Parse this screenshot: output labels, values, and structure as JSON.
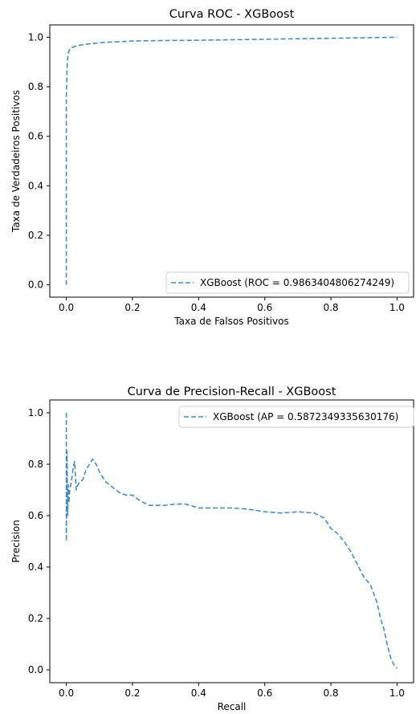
{
  "chart_data": [
    {
      "type": "line",
      "title": "Curva ROC  - XGBoost",
      "xlabel": "Taxa de Falsos Positivos",
      "ylabel": "Taxa de Verdadeiros Positivos",
      "xlim": [
        -0.05,
        1.05
      ],
      "ylim": [
        -0.05,
        1.05
      ],
      "xticks": [
        0.0,
        0.2,
        0.4,
        0.6,
        0.8,
        1.0
      ],
      "xtick_labels": [
        "0.0",
        "0.2",
        "0.4",
        "0.6",
        "0.8",
        "1.0"
      ],
      "yticks": [
        0.0,
        0.2,
        0.4,
        0.6,
        0.8,
        1.0
      ],
      "ytick_labels": [
        "0.0",
        "0.2",
        "0.4",
        "0.6",
        "0.8",
        "1.0"
      ],
      "legend_position": "lower-right",
      "grid": false,
      "color": "#4a8bbd",
      "series": [
        {
          "name": "XGBoost (ROC = 0.9863404806274249)",
          "x": [
            0.0,
            0.0,
            0.002,
            0.003,
            0.005,
            0.008,
            0.012,
            0.02,
            0.03,
            0.05,
            0.08,
            0.12,
            0.16,
            0.2,
            0.3,
            0.4,
            0.5,
            0.6,
            0.7,
            0.8,
            0.9,
            1.0
          ],
          "y": [
            0.0,
            0.75,
            0.86,
            0.9,
            0.93,
            0.945,
            0.955,
            0.96,
            0.965,
            0.97,
            0.975,
            0.98,
            0.982,
            0.985,
            0.987,
            0.988,
            0.99,
            0.992,
            0.994,
            0.996,
            0.998,
            1.0
          ]
        }
      ]
    },
    {
      "type": "line",
      "title": "Curva de Precision-Recall - XGBoost",
      "xlabel": "Recall",
      "ylabel": "Precision",
      "xlim": [
        -0.05,
        1.05
      ],
      "ylim": [
        -0.05,
        1.05
      ],
      "xticks": [
        0.0,
        0.2,
        0.4,
        0.6,
        0.8,
        1.0
      ],
      "xtick_labels": [
        "0.0",
        "0.2",
        "0.4",
        "0.6",
        "0.8",
        "1.0"
      ],
      "yticks": [
        0.0,
        0.2,
        0.4,
        0.6,
        0.8,
        1.0
      ],
      "ytick_labels": [
        "0.0",
        "0.2",
        "0.4",
        "0.6",
        "0.8",
        "1.0"
      ],
      "legend_position": "upper-right",
      "grid": false,
      "color": "#4a8bbd",
      "series": [
        {
          "name": "XGBoost (AP = 0.5872349335630176)",
          "x": [
            0.0,
            0.0,
            0.002,
            0.004,
            0.006,
            0.008,
            0.01,
            0.015,
            0.02,
            0.025,
            0.03,
            0.035,
            0.04,
            0.05,
            0.06,
            0.07,
            0.08,
            0.09,
            0.1,
            0.12,
            0.14,
            0.16,
            0.18,
            0.2,
            0.22,
            0.25,
            0.28,
            0.3,
            0.33,
            0.36,
            0.4,
            0.45,
            0.5,
            0.55,
            0.6,
            0.65,
            0.7,
            0.75,
            0.78,
            0.8,
            0.82,
            0.84,
            0.86,
            0.88,
            0.9,
            0.92,
            0.94,
            0.95,
            0.96,
            0.97,
            0.98,
            0.99,
            1.0
          ],
          "y": [
            1.0,
            0.5,
            0.85,
            0.6,
            0.72,
            0.65,
            0.7,
            0.73,
            0.78,
            0.81,
            0.7,
            0.72,
            0.73,
            0.74,
            0.78,
            0.8,
            0.82,
            0.8,
            0.77,
            0.73,
            0.71,
            0.69,
            0.68,
            0.68,
            0.66,
            0.64,
            0.64,
            0.64,
            0.645,
            0.645,
            0.63,
            0.63,
            0.63,
            0.625,
            0.615,
            0.61,
            0.615,
            0.61,
            0.59,
            0.55,
            0.53,
            0.5,
            0.46,
            0.41,
            0.36,
            0.33,
            0.26,
            0.2,
            0.16,
            0.1,
            0.05,
            0.02,
            0.005
          ]
        }
      ]
    }
  ]
}
